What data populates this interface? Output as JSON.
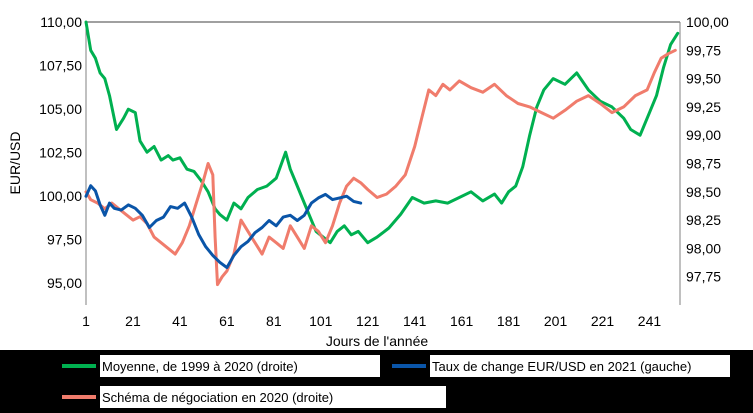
{
  "chart_data": {
    "type": "line",
    "xlabel": "Jours de l'année",
    "ylabel_left": "EUR/USD",
    "x_ticks": [
      1,
      21,
      41,
      61,
      81,
      101,
      121,
      141,
      161,
      181,
      201,
      221,
      241
    ],
    "y_left": {
      "min": 93.75,
      "max": 110.0,
      "ticks": [
        "95,00",
        "97,50",
        "100,00",
        "102,50",
        "105,00",
        "107,50",
        "110,00"
      ],
      "tick_values": [
        95.0,
        97.5,
        100.0,
        102.5,
        105.0,
        107.5,
        110.0
      ]
    },
    "y_right": {
      "min": 97.5,
      "max": 100.0,
      "ticks": [
        "97,75",
        "98,00",
        "98,25",
        "98,50",
        "98,75",
        "99,00",
        "99,25",
        "99,50",
        "99,75",
        "100,00"
      ],
      "tick_values": [
        97.75,
        98.0,
        98.25,
        98.5,
        98.75,
        99.0,
        99.25,
        99.5,
        99.75,
        100.0
      ]
    },
    "grid": "horizontal line at 110,00 only",
    "legend_position": "bottom",
    "series": [
      {
        "name": "Moyenne, de 1999 à 2020 (droite)",
        "axis": "right",
        "color": "#00b050",
        "x": [
          1,
          3,
          5,
          7,
          9,
          11,
          14,
          17,
          19,
          22,
          24,
          27,
          30,
          33,
          36,
          38,
          41,
          44,
          47,
          50,
          53,
          56,
          58,
          61,
          64,
          67,
          70,
          74,
          78,
          82,
          86,
          88,
          90,
          93,
          96,
          99,
          102,
          105,
          108,
          111,
          114,
          117,
          121,
          125,
          130,
          135,
          140,
          145,
          150,
          155,
          160,
          165,
          170,
          175,
          178,
          181,
          184,
          187,
          190,
          193,
          196,
          200,
          205,
          210,
          215,
          220,
          225,
          230,
          233,
          237,
          241,
          244,
          247,
          250,
          253
        ],
        "values": [
          100.0,
          99.75,
          99.68,
          99.55,
          99.5,
          99.35,
          99.05,
          99.15,
          99.23,
          99.2,
          98.95,
          98.85,
          98.9,
          98.78,
          98.82,
          98.78,
          98.8,
          98.7,
          98.68,
          98.6,
          98.5,
          98.35,
          98.3,
          98.25,
          98.4,
          98.35,
          98.45,
          98.52,
          98.55,
          98.62,
          98.85,
          98.7,
          98.6,
          98.45,
          98.3,
          98.15,
          98.1,
          98.05,
          98.15,
          98.2,
          98.12,
          98.15,
          98.05,
          98.1,
          98.18,
          98.3,
          98.45,
          98.4,
          98.42,
          98.4,
          98.45,
          98.5,
          98.42,
          98.48,
          98.4,
          98.5,
          98.55,
          98.72,
          99.0,
          99.25,
          99.4,
          99.5,
          99.45,
          99.55,
          99.4,
          99.3,
          99.25,
          99.15,
          99.05,
          99.0,
          99.2,
          99.35,
          99.6,
          99.8,
          99.9
        ]
      },
      {
        "name": "Taux de change EUR/USD en 2021 (gauche)",
        "axis": "left",
        "color": "#0a55a8",
        "x": [
          1,
          3,
          5,
          7,
          9,
          11,
          13,
          16,
          19,
          22,
          25,
          28,
          31,
          34,
          37,
          40,
          43,
          46,
          49,
          52,
          55,
          58,
          61,
          64,
          67,
          70,
          73,
          76,
          79,
          82,
          85,
          88,
          91,
          94,
          97,
          100,
          103,
          106,
          109,
          112,
          115,
          118
        ],
        "values": [
          100.0,
          100.6,
          100.3,
          99.5,
          98.9,
          99.6,
          99.3,
          99.2,
          99.5,
          99.3,
          98.9,
          98.2,
          98.6,
          98.8,
          99.4,
          99.3,
          99.6,
          98.8,
          97.8,
          97.1,
          96.6,
          96.2,
          95.9,
          96.6,
          97.1,
          97.4,
          97.9,
          98.2,
          98.6,
          98.3,
          98.8,
          98.9,
          98.6,
          98.9,
          99.6,
          99.9,
          100.1,
          99.8,
          99.9,
          100.0,
          99.7,
          99.6
        ]
      },
      {
        "name": "Schéma de négociation en 2020 (droite)",
        "axis": "right",
        "color": "#f07c6c",
        "x": [
          1,
          3,
          6,
          9,
          12,
          15,
          18,
          21,
          24,
          27,
          30,
          33,
          36,
          39,
          42,
          45,
          48,
          51,
          53,
          55,
          56,
          57,
          59,
          61,
          64,
          67,
          70,
          73,
          76,
          79,
          82,
          85,
          88,
          91,
          94,
          97,
          100,
          103,
          106,
          109,
          112,
          115,
          118,
          121,
          125,
          129,
          133,
          137,
          141,
          144,
          147,
          150,
          153,
          156,
          160,
          165,
          170,
          175,
          180,
          185,
          190,
          195,
          200,
          205,
          210,
          215,
          220,
          225,
          230,
          235,
          240,
          243,
          246,
          249,
          252
        ],
        "values": [
          98.5,
          98.43,
          98.4,
          98.35,
          98.4,
          98.35,
          98.3,
          98.25,
          98.28,
          98.22,
          98.1,
          98.05,
          98.0,
          97.95,
          98.05,
          98.2,
          98.4,
          98.6,
          98.75,
          98.65,
          98.1,
          97.68,
          97.75,
          97.8,
          97.95,
          98.25,
          98.15,
          98.05,
          97.95,
          98.1,
          98.05,
          98.0,
          98.2,
          98.1,
          98.0,
          98.2,
          98.15,
          98.05,
          98.2,
          98.4,
          98.55,
          98.62,
          98.58,
          98.52,
          98.45,
          98.48,
          98.55,
          98.65,
          98.9,
          99.15,
          99.4,
          99.35,
          99.45,
          99.4,
          99.48,
          99.42,
          99.38,
          99.45,
          99.35,
          99.28,
          99.25,
          99.2,
          99.15,
          99.22,
          99.3,
          99.35,
          99.28,
          99.2,
          99.25,
          99.35,
          99.4,
          99.55,
          99.68,
          99.72,
          99.75
        ]
      }
    ]
  }
}
